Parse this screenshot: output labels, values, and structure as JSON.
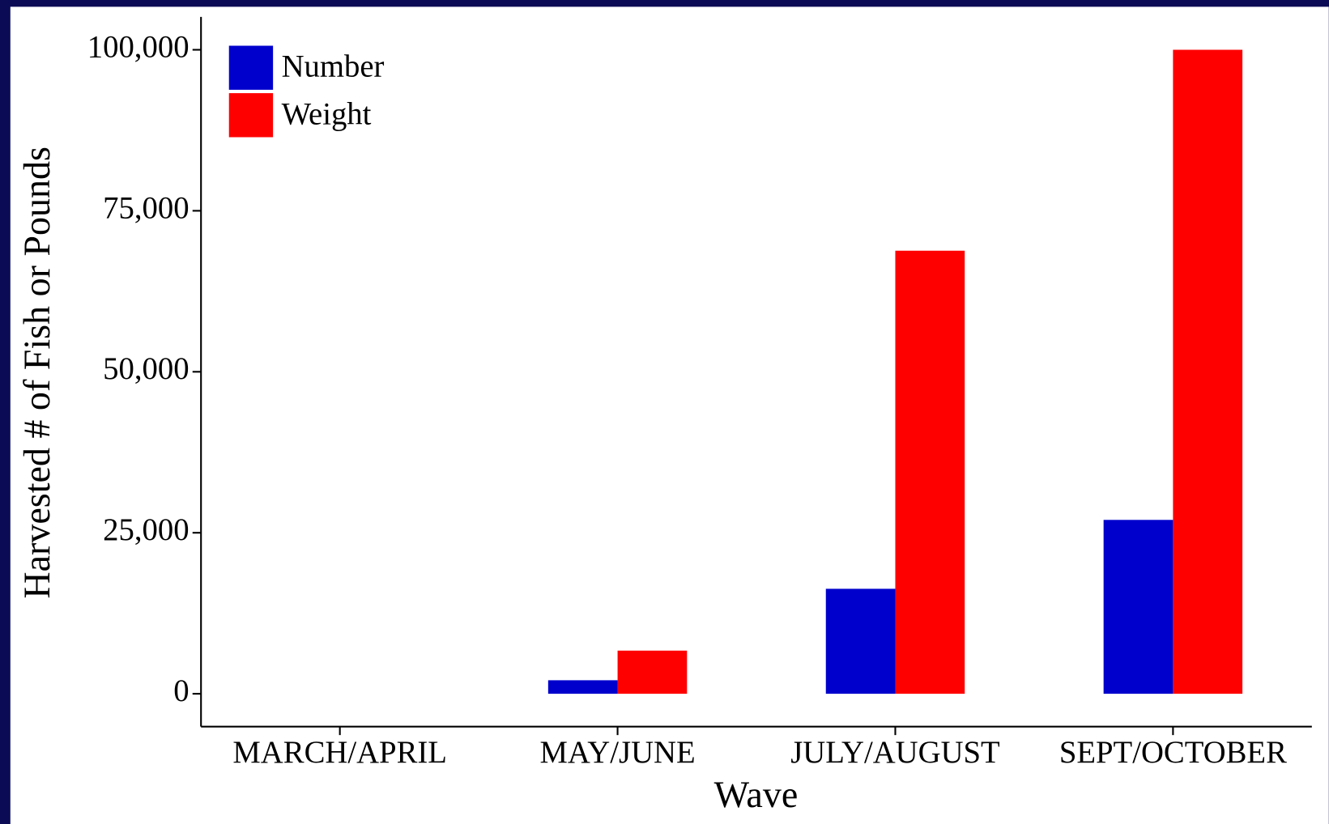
{
  "chart_data": {
    "type": "bar",
    "x_label": "Wave",
    "y_label": "Harvested # of Fish or Pounds",
    "categories": [
      "MARCH/APRIL",
      "MAY/JUNE",
      "JULY/AUGUST",
      "SEPT/OCTOBER"
    ],
    "series": [
      {
        "name": "Number",
        "color": "#0000cd",
        "values": [
          0,
          2100,
          16300,
          27000
        ]
      },
      {
        "name": "Weight",
        "color": "#ff0000",
        "values": [
          0,
          6700,
          68800,
          100000
        ]
      }
    ],
    "ylim": [
      -5100,
      105100
    ],
    "yticks": [
      0,
      {
        "value": 25000,
        "label": "25,000"
      },
      {
        "value": 50000,
        "label": "50,000"
      },
      {
        "value": 75000,
        "label": "75,000"
      },
      {
        "value": 100000,
        "label": "100,000"
      }
    ],
    "legend": "top-left",
    "grid": false
  }
}
